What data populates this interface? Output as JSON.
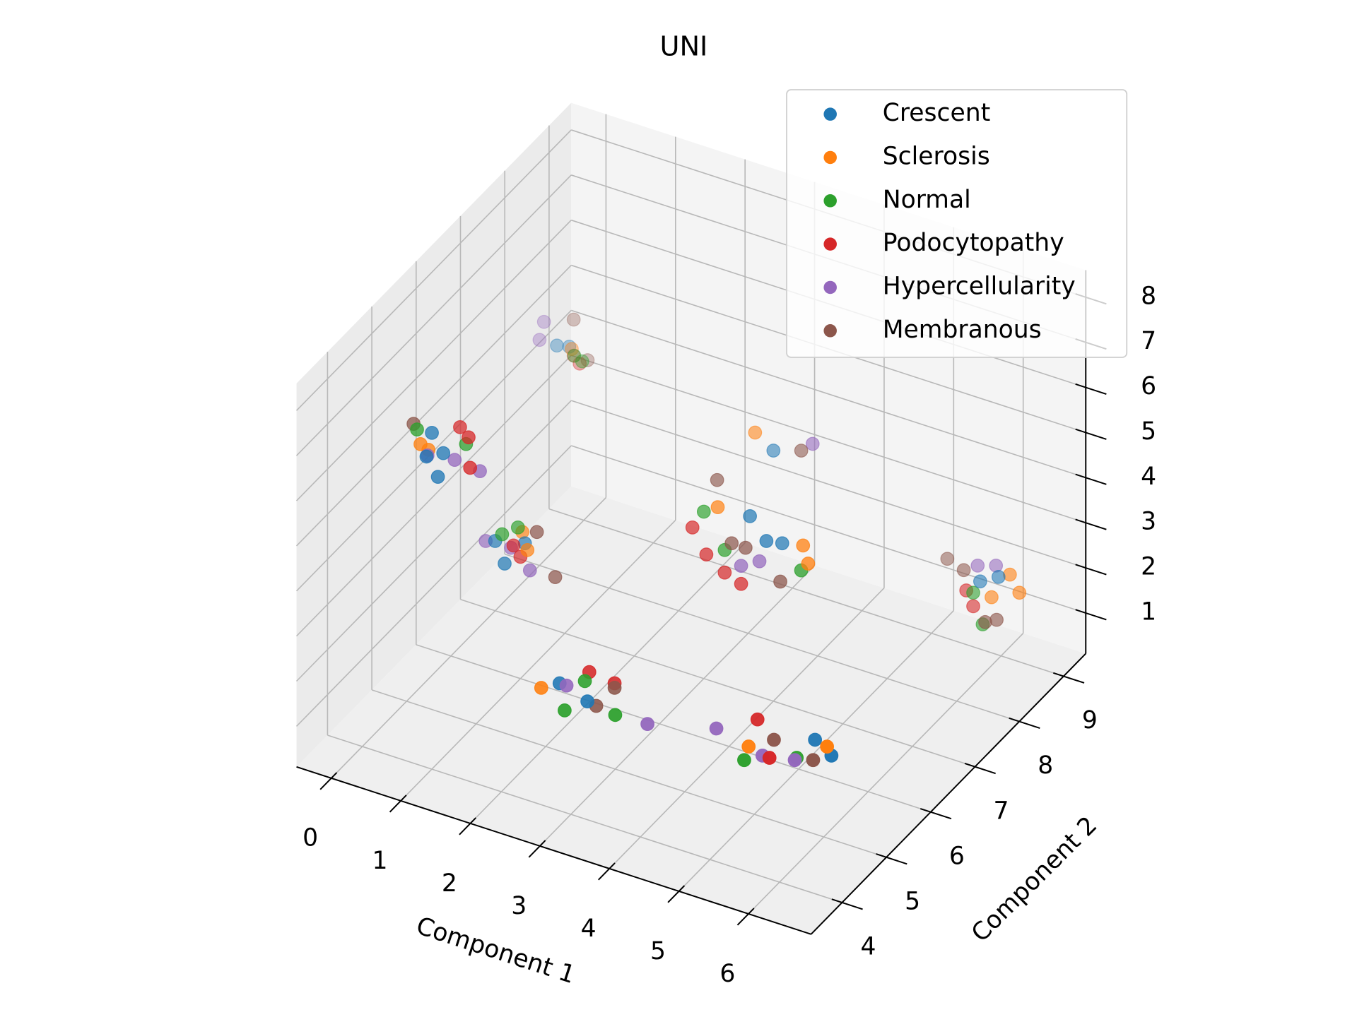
{
  "chart_data": {
    "type": "scatter3d",
    "title": "UNI",
    "x_label": "Component 1",
    "y_label": "Component 2",
    "xlim": [
      -0.5,
      6.9
    ],
    "ylim": [
      3.3,
      9.5
    ],
    "zlim": [
      0.1,
      8.6
    ],
    "xticks": [
      0,
      1,
      2,
      3,
      4,
      5,
      6
    ],
    "yticks": [
      4,
      5,
      6,
      7,
      8,
      9
    ],
    "zticks": [
      1,
      2,
      3,
      4,
      5,
      6,
      7,
      8
    ],
    "grid": true,
    "legend": "upper right",
    "series": [
      {
        "name": "Crescent",
        "color": "#1f77b4",
        "x": [
          0.3,
          0.35,
          0.4,
          0.45,
          0.25,
          0.3,
          0.7,
          1.0,
          0.9,
          3.6,
          3.9,
          4.0,
          3.3,
          2.2,
          2.6,
          5.3,
          5.6,
          5.7,
          5.9
        ],
        "y": [
          5.1,
          4.9,
          5.2,
          5.0,
          8.0,
          8.2,
          5.9,
          6.1,
          5.8,
          7.1,
          7.0,
          7.2,
          8.1,
          5.0,
          5.0,
          5.9,
          5.8,
          9.0,
          9.1
        ],
        "z": [
          6.1,
          5.8,
          5.6,
          5.3,
          5.1,
          4.9,
          3.1,
          3.0,
          2.8,
          3.9,
          3.6,
          3.4,
          4.2,
          1.6,
          1.4,
          1.0,
          0.9,
          1.6,
          1.7
        ]
      },
      {
        "name": "Sclerosis",
        "color": "#ff7f0e",
        "x": [
          0.2,
          0.25,
          0.4,
          1.1,
          0.9,
          3.2,
          4.3,
          4.5,
          3.1,
          2.0,
          4.6,
          5.6,
          6.0,
          6.2,
          5.8
        ],
        "y": [
          5.0,
          5.1,
          8.1,
          6.0,
          6.2,
          7.0,
          7.2,
          7.0,
          8.0,
          4.9,
          5.5,
          5.7,
          9.2,
          9.1,
          9.1
        ],
        "z": [
          5.9,
          5.7,
          5.0,
          3.0,
          3.1,
          4.0,
          3.5,
          3.4,
          4.6,
          1.5,
          0.9,
          1.2,
          1.7,
          1.5,
          1.2
        ]
      },
      {
        "name": "Normal",
        "color": "#2ca02c",
        "x": [
          0.15,
          0.6,
          0.5,
          0.55,
          0.8,
          0.9,
          3.0,
          3.3,
          4.4,
          2.5,
          2.4,
          3.0,
          4.6,
          5.1,
          5.6,
          5.8
        ],
        "y": [
          5.0,
          5.4,
          8.0,
          8.1,
          5.9,
          6.1,
          7.0,
          7.0,
          7.0,
          5.1,
          4.8,
          5.0,
          5.4,
          5.8,
          9.0,
          8.9
        ],
        "z": [
          6.2,
          5.7,
          5.0,
          4.8,
          3.3,
          3.3,
          3.8,
          3.1,
          3.2,
          1.7,
          1.3,
          1.3,
          0.7,
          0.6,
          1.3,
          0.8
        ]
      },
      {
        "name": "Podocytopathy",
        "color": "#d62728",
        "x": [
          0.7,
          0.85,
          0.45,
          0.3,
          0.45,
          0.9,
          1.0,
          2.9,
          3.1,
          3.3,
          3.6,
          2.5,
          2.8,
          4.6,
          4.9,
          5.5,
          5.6
        ],
        "y": [
          5.3,
          5.1,
          5.5,
          8.3,
          8.2,
          6.0,
          6.0,
          6.9,
          6.9,
          7.0,
          6.9,
          5.2,
          5.3,
          5.7,
          5.5,
          9.0,
          9.0
        ],
        "z": [
          6.0,
          5.6,
          5.9,
          4.6,
          4.6,
          3.0,
          2.8,
          3.5,
          3.0,
          2.6,
          2.6,
          1.8,
          1.6,
          1.3,
          0.8,
          1.3,
          1.0
        ]
      },
      {
        "name": "Hypercellularity",
        "color": "#9467bd",
        "x": [
          0.3,
          0.5,
          0.8,
          0.0,
          0.0,
          0.5,
          0.8,
          1.2,
          3.6,
          3.8,
          3.8,
          2.3,
          3.4,
          4.2,
          4.8,
          5.2,
          5.6,
          5.8
        ],
        "y": [
          5.0,
          5.3,
          5.4,
          8.0,
          8.1,
          6.0,
          6.1,
          5.9,
          6.9,
          7.0,
          8.2,
          5.0,
          5.1,
          5.4,
          5.5,
          5.6,
          9.1,
          9.2
        ],
        "z": [
          5.7,
          5.4,
          5.2,
          5.1,
          5.4,
          2.9,
          2.8,
          2.7,
          3.0,
          3.1,
          4.5,
          1.6,
          1.2,
          1.2,
          0.8,
          0.8,
          1.8,
          1.8
        ]
      },
      {
        "name": "Membranous",
        "color": "#8c564b",
        "x": [
          0.1,
          0.3,
          0.5,
          1.3,
          1.5,
          3.0,
          3.4,
          3.6,
          4.1,
          3.7,
          2.8,
          2.6,
          4.9,
          5.4,
          5.1,
          5.4,
          5.9,
          6.0
        ],
        "y": [
          5.0,
          8.3,
          8.3,
          5.9,
          6.0,
          7.3,
          7.0,
          7.0,
          7.0,
          8.1,
          5.3,
          5.2,
          5.6,
          5.7,
          9.2,
          9.1,
          8.8,
          8.9
        ],
        "z": [
          6.3,
          5.4,
          4.6,
          3.6,
          2.6,
          4.2,
          3.3,
          3.3,
          2.8,
          4.4,
          1.5,
          1.1,
          1.1,
          0.8,
          1.6,
          1.6,
          1.0,
          1.0
        ]
      }
    ]
  }
}
